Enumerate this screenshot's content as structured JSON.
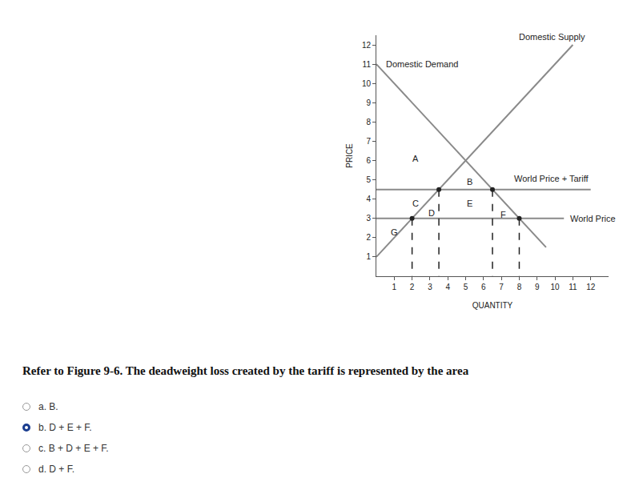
{
  "chart_data": {
    "type": "line",
    "x_label": "QUANTITY",
    "y_label": "PRICE",
    "series": [
      {
        "name": "Domestic Supply",
        "color": "#8a8a8a",
        "x": [
          0,
          11
        ],
        "values": [
          1,
          12
        ]
      },
      {
        "name": "Domestic Demand",
        "color": "#8a8a8a",
        "x": [
          0,
          9.5
        ],
        "values": [
          11,
          1.5
        ]
      },
      {
        "name": "World Price + Tariff",
        "color": "#8a8a8a",
        "x": [
          0,
          12
        ],
        "values": [
          4.5,
          4.5
        ]
      },
      {
        "name": "World Price",
        "color": "#8a8a8a",
        "x": [
          0,
          10.5
        ],
        "values": [
          3,
          3
        ]
      }
    ],
    "points": {
      "x": [
        2,
        3.5,
        6.5,
        8
      ],
      "values": [
        3,
        4.5,
        4.5,
        3
      ],
      "color": "#222222",
      "line_style": "dashed"
    },
    "annotations": [
      {
        "text": "A",
        "x": 2.2,
        "y": 6.1
      },
      {
        "text": "B",
        "x": 5.2,
        "y": 4.9
      },
      {
        "text": "C",
        "x": 2.2,
        "y": 3.8
      },
      {
        "text": "D",
        "x": 3.1,
        "y": 3.3
      },
      {
        "text": "E",
        "x": 5.2,
        "y": 3.8
      },
      {
        "text": "F",
        "x": 7.1,
        "y": 3.2
      },
      {
        "text": "G",
        "x": 1.0,
        "y": 2.3
      }
    ],
    "xlim": [
      0,
      13
    ],
    "xticks": [
      1,
      2,
      3,
      4,
      5,
      6,
      7,
      8,
      9,
      10,
      11,
      12
    ],
    "ylim": [
      0,
      12.5
    ],
    "yticks": [
      1,
      2,
      3,
      4,
      5,
      6,
      7,
      8,
      9,
      10,
      11,
      12
    ],
    "grid": false,
    "legend": "none"
  },
  "question": "Refer to Figure 9-6. The deadweight loss created by the tariff is represented by the area",
  "options": [
    "a. B.",
    "b. D + E + F.",
    "c. B + D + E + F.",
    "d. D + F."
  ],
  "selected": 1
}
